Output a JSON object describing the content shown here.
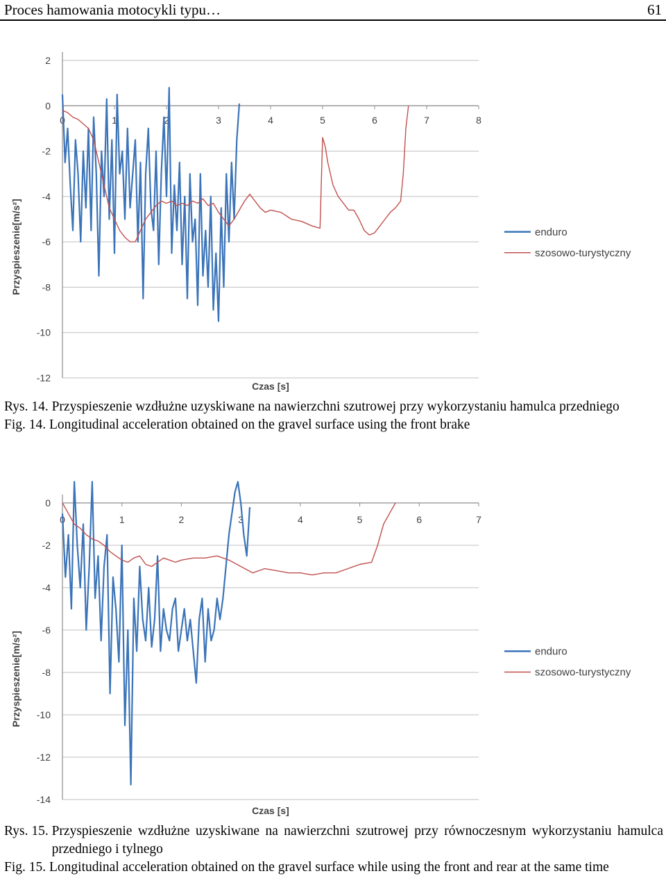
{
  "header": {
    "title": "Proces hamowania motocykli typu…",
    "page_number": "61"
  },
  "colors": {
    "enduro": "#3a73b8",
    "szosowo": "#c0504d",
    "grid": "#bfbfbf",
    "axis": "#8c8c8c",
    "label": "#404040"
  },
  "figures": [
    {
      "caption_pl_label": "Rys. 14.",
      "caption_pl": "Przyspieszenie wzdłużne uzyskiwane na nawierzchni szutrowej przy wykorzystaniu hamulca przedniego",
      "caption_en_label": "Fig. 14.",
      "caption_en": "Longitudinal acceleration obtained on the gravel surface using the front brake"
    },
    {
      "caption_pl_label": "Rys. 15.",
      "caption_pl": "Przyspieszenie wzdłużne uzyskiwane na nawierzchni szutrowej przy równoczesnym wykorzystaniu hamulca przedniego i tylnego",
      "caption_en_label": "Fig. 15.",
      "caption_en": "Longitudinal acceleration obtained on the gravel surface while using the front and rear at the same time"
    }
  ],
  "chart_data": [
    {
      "type": "line",
      "xlabel": "Czas [s]",
      "ylabel": "Przyspieszenie[m/s²]",
      "xlim": [
        0,
        8
      ],
      "ylim": [
        -12,
        2
      ],
      "xticks": [
        "0",
        "1",
        "2",
        "3",
        "4",
        "5",
        "6",
        "7",
        "8"
      ],
      "yticks": [
        "2",
        "0",
        "-2",
        "-4",
        "-6",
        "-8",
        "-10",
        "-12"
      ],
      "grid": true,
      "legend_position": "right",
      "series": [
        {
          "name": "enduro",
          "x": [
            0,
            0.05,
            0.1,
            0.15,
            0.2,
            0.25,
            0.3,
            0.35,
            0.4,
            0.45,
            0.5,
            0.55,
            0.6,
            0.65,
            0.7,
            0.75,
            0.8,
            0.85,
            0.9,
            0.95,
            1.0,
            1.05,
            1.1,
            1.15,
            1.2,
            1.25,
            1.3,
            1.35,
            1.4,
            1.45,
            1.5,
            1.55,
            1.6,
            1.65,
            1.7,
            1.75,
            1.8,
            1.85,
            1.9,
            1.95,
            2.0,
            2.05,
            2.1,
            2.15,
            2.2,
            2.25,
            2.3,
            2.35,
            2.4,
            2.45,
            2.5,
            2.55,
            2.6,
            2.65,
            2.7,
            2.75,
            2.8,
            2.85,
            2.9,
            2.95,
            3.0,
            3.05,
            3.1,
            3.15,
            3.2,
            3.25,
            3.3,
            3.35,
            3.4
          ],
          "y": [
            0.5,
            -2.5,
            -1.0,
            -3.5,
            -5.5,
            -1.5,
            -3.0,
            -6.0,
            -2.0,
            -4.5,
            -1.0,
            -5.5,
            -0.5,
            -3.0,
            -7.5,
            -2.0,
            -4.0,
            0.3,
            -5.0,
            -1.5,
            -6.5,
            0.5,
            -3.0,
            -2.0,
            -5.0,
            -1.0,
            -4.5,
            -3.0,
            -1.5,
            -6.0,
            -2.5,
            -8.5,
            -3.0,
            -1.0,
            -4.5,
            -5.5,
            -2.0,
            -7.0,
            -3.0,
            -0.5,
            -4.0,
            0.8,
            -6.5,
            -3.5,
            -5.5,
            -2.5,
            -7.0,
            -4.0,
            -8.5,
            -3.0,
            -6.0,
            -5.0,
            -8.8,
            -3.0,
            -7.5,
            -5.5,
            -8.0,
            -4.0,
            -9.0,
            -6.5,
            -9.5,
            -4.5,
            -8.0,
            -3.0,
            -6.0,
            -2.5,
            -5.0,
            -1.5,
            0.1
          ]
        },
        {
          "name": "szosowo-turystyczny",
          "x": [
            0,
            0.1,
            0.2,
            0.3,
            0.4,
            0.5,
            0.6,
            0.7,
            0.8,
            0.9,
            1.0,
            1.1,
            1.2,
            1.3,
            1.4,
            1.5,
            1.6,
            1.7,
            1.8,
            1.9,
            2.0,
            2.1,
            2.2,
            2.3,
            2.4,
            2.5,
            2.6,
            2.7,
            2.8,
            2.9,
            3.0,
            3.1,
            3.2,
            3.3,
            3.4,
            3.5,
            3.6,
            3.7,
            3.8,
            3.9,
            4.0,
            4.2,
            4.4,
            4.6,
            4.8,
            4.95,
            5.0,
            5.05,
            5.1,
            5.2,
            5.3,
            5.4,
            5.5,
            5.6,
            5.7,
            5.8,
            5.9,
            6.0,
            6.1,
            6.2,
            6.3,
            6.4,
            6.5,
            6.55,
            6.6,
            6.65
          ],
          "y": [
            -0.2,
            -0.3,
            -0.5,
            -0.6,
            -0.8,
            -1.0,
            -1.5,
            -2.5,
            -3.5,
            -4.5,
            -5.0,
            -5.5,
            -5.8,
            -6.0,
            -6.0,
            -5.5,
            -5.0,
            -4.7,
            -4.4,
            -4.2,
            -4.3,
            -4.2,
            -4.4,
            -4.3,
            -4.4,
            -4.2,
            -4.3,
            -4.1,
            -4.4,
            -4.3,
            -4.7,
            -5.0,
            -5.3,
            -5.0,
            -4.6,
            -4.2,
            -3.9,
            -4.2,
            -4.5,
            -4.7,
            -4.6,
            -4.7,
            -5.0,
            -5.1,
            -5.3,
            -5.4,
            -1.4,
            -1.8,
            -2.5,
            -3.5,
            -4.0,
            -4.3,
            -4.6,
            -4.6,
            -5.0,
            -5.5,
            -5.7,
            -5.6,
            -5.3,
            -5.0,
            -4.7,
            -4.5,
            -4.2,
            -3.0,
            -1.0,
            0.0
          ]
        }
      ]
    },
    {
      "type": "line",
      "xlabel": "Czas [s]",
      "ylabel": "Przyspieszenie[m/s²]",
      "xlim": [
        0,
        7
      ],
      "ylim": [
        -14,
        0
      ],
      "xticks": [
        "0",
        "1",
        "2",
        "3",
        "4",
        "5",
        "6",
        "7"
      ],
      "yticks": [
        "0",
        "-2",
        "-4",
        "-6",
        "-8",
        "-10",
        "-12",
        "-14"
      ],
      "grid": true,
      "legend_position": "right",
      "series": [
        {
          "name": "enduro",
          "x": [
            0,
            0.05,
            0.1,
            0.15,
            0.2,
            0.25,
            0.3,
            0.35,
            0.4,
            0.45,
            0.5,
            0.55,
            0.6,
            0.65,
            0.7,
            0.75,
            0.8,
            0.85,
            0.9,
            0.95,
            1.0,
            1.05,
            1.1,
            1.15,
            1.2,
            1.25,
            1.3,
            1.35,
            1.4,
            1.45,
            1.5,
            1.55,
            1.6,
            1.65,
            1.7,
            1.75,
            1.8,
            1.85,
            1.9,
            1.95,
            2.0,
            2.05,
            2.1,
            2.15,
            2.2,
            2.25,
            2.3,
            2.35,
            2.4,
            2.45,
            2.5,
            2.55,
            2.6,
            2.65,
            2.7,
            2.75,
            2.8,
            2.85,
            2.9,
            2.95,
            3.0,
            3.05,
            3.1,
            3.15
          ],
          "y": [
            -0.5,
            -3.5,
            -1.5,
            -5.0,
            1.0,
            -2.0,
            -4.0,
            -1.0,
            -6.0,
            -3.0,
            1.0,
            -4.5,
            -2.5,
            -6.5,
            -3.0,
            -1.5,
            -9.0,
            -3.5,
            -5.0,
            -7.5,
            -2.0,
            -10.5,
            -6.0,
            -13.3,
            -4.5,
            -7.0,
            -3.0,
            -5.5,
            -6.5,
            -4.0,
            -6.8,
            -5.5,
            -2.5,
            -7.0,
            -5.0,
            -6.0,
            -6.5,
            -5.0,
            -4.5,
            -7.0,
            -6.0,
            -5.0,
            -6.5,
            -5.5,
            -7.0,
            -8.5,
            -5.5,
            -4.5,
            -7.5,
            -5.0,
            -6.5,
            -6.0,
            -4.5,
            -5.5,
            -4.5,
            -3.0,
            -1.5,
            -0.5,
            0.5,
            1.0,
            0.0,
            -1.5,
            -2.5,
            -0.2
          ]
        },
        {
          "name": "szosowo-turystyczny",
          "x": [
            0,
            0.1,
            0.2,
            0.3,
            0.4,
            0.5,
            0.6,
            0.7,
            0.8,
            0.9,
            1.0,
            1.1,
            1.2,
            1.3,
            1.4,
            1.5,
            1.6,
            1.7,
            1.8,
            1.9,
            2.0,
            2.2,
            2.4,
            2.6,
            2.8,
            3.0,
            3.2,
            3.4,
            3.6,
            3.8,
            4.0,
            4.2,
            4.4,
            4.6,
            4.8,
            5.0,
            5.2,
            5.3,
            5.4,
            5.5,
            5.6
          ],
          "y": [
            0.0,
            -0.5,
            -1.0,
            -1.2,
            -1.5,
            -1.7,
            -1.8,
            -2.0,
            -2.3,
            -2.5,
            -2.7,
            -2.8,
            -2.6,
            -2.5,
            -2.9,
            -3.0,
            -2.8,
            -2.6,
            -2.7,
            -2.8,
            -2.7,
            -2.6,
            -2.6,
            -2.5,
            -2.7,
            -3.0,
            -3.3,
            -3.1,
            -3.2,
            -3.3,
            -3.3,
            -3.4,
            -3.3,
            -3.3,
            -3.1,
            -2.9,
            -2.8,
            -2.0,
            -1.0,
            -0.5,
            0.0
          ]
        }
      ]
    }
  ]
}
